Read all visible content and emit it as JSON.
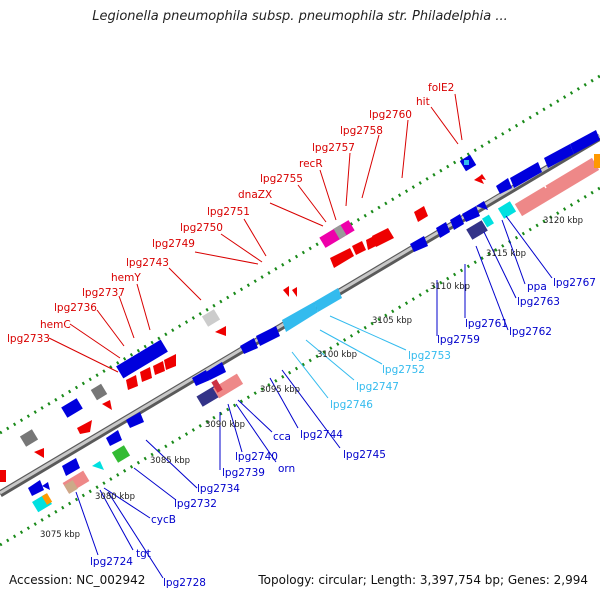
{
  "title": "Legionella pneumophila subsp. pneumophila str. Philadelphia ...",
  "footer": {
    "accession": "Accession: NC_002942",
    "summary": "Topology: circular; Length: 3,397,754 bp; Genes: 2,994"
  },
  "colors": {
    "backbone": "#909090",
    "tick_marks": "#1a8a1a",
    "label_top": "#d80000",
    "label_bottom_dark": "#0000cc",
    "label_bottom_light": "#33bbee",
    "gene_blue": "#0000dd",
    "gene_red": "#ee0000",
    "gene_lightblue": "#33bbee",
    "gene_pink": "#ee8888",
    "gene_cyan": "#00e0e0",
    "gene_gray": "#999999",
    "gene_magenta": "#ee00aa",
    "gene_green": "#33bb33",
    "gene_navy": "#333388",
    "gene_orange": "#ff9900",
    "gene_tan": "#ccaa88"
  },
  "scale_labels": [
    "3075 kbp",
    "3080 kbp",
    "3085 kbp",
    "3090 kbp",
    "3095 kbp",
    "3100 kbp",
    "3105 kbp",
    "3110 kbp",
    "3115 kbp",
    "3120 kbp"
  ],
  "top_labels": [
    "lpg2733",
    "hemC",
    "lpg2736",
    "lpg2737",
    "hemY",
    "lpg2743",
    "lpg2749",
    "lpg2750",
    "lpg2751",
    "dnaZX",
    "lpg2755",
    "recR",
    "lpg2757",
    "lpg2758",
    "lpg2760",
    "hit",
    "folE2"
  ],
  "bottom_labels": [
    "lpg2724",
    "tgt",
    "lpg2728",
    "cycB",
    "lpg2732",
    "lpg2734",
    "lpg2739",
    "lpg2740",
    "orn",
    "cca",
    "lpg2744",
    "lpg2745",
    "lpg2746",
    "lpg2747",
    "lpg2752",
    "lpg2753",
    "lpg2759",
    "lpg2761",
    "lpg2762",
    "lpg2763",
    "ppa",
    "lpg2767"
  ]
}
